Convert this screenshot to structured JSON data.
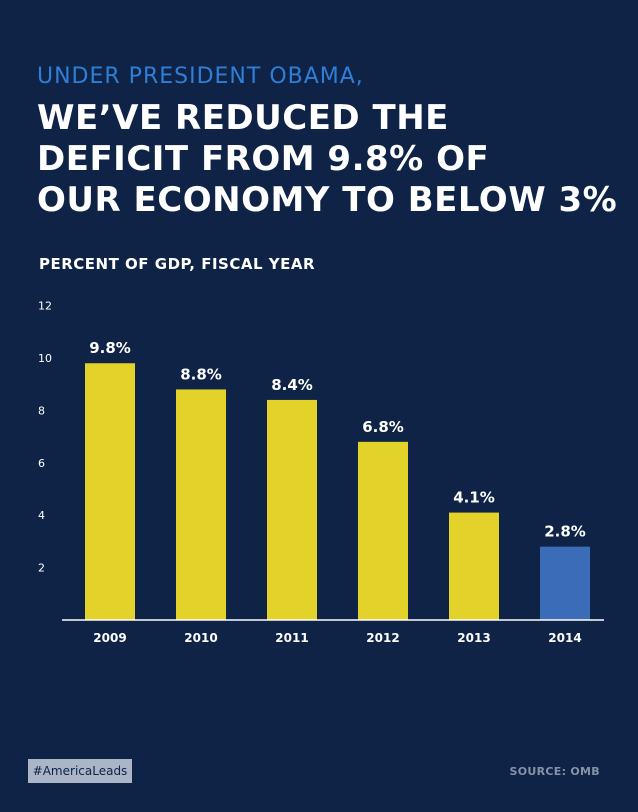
{
  "kicker": "UNDER PRESIDENT OBAMA,",
  "headline_lines": [
    "WE’VE REDUCED THE",
    "DEFICIT FROM 9.8% OF",
    "OUR ECONOMY TO BELOW 3%"
  ],
  "footer": {
    "hashtag": "#AmericaLeads",
    "source": "SOURCE: OMB"
  },
  "colors": {
    "background": "#0e2345",
    "bar": "#e3d22a",
    "highlight_bar": "#3b6cb7",
    "kicker": "#2f7fd8"
  },
  "chart_data": {
    "type": "bar",
    "title": "PERCENT OF GDP, FISCAL YEAR",
    "categories": [
      "2009",
      "2010",
      "2011",
      "2012",
      "2013",
      "2014"
    ],
    "values": [
      9.8,
      8.8,
      8.4,
      6.8,
      4.1,
      2.8
    ],
    "value_labels": [
      "9.8%",
      "8.8%",
      "8.4%",
      "6.8%",
      "4.1%",
      "2.8%"
    ],
    "highlight_index": 5,
    "ylim": [
      0,
      12
    ],
    "yticks": [
      2,
      4,
      6,
      8,
      10,
      12
    ],
    "grid": false,
    "legend": false
  }
}
